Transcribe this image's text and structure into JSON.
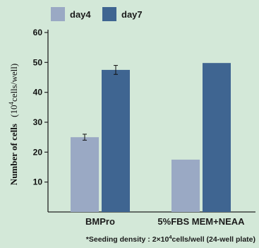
{
  "chart_data": {
    "type": "bar",
    "categories": [
      "BMPro",
      "5%FBS MEM+NEAA"
    ],
    "series": [
      {
        "name": "day4",
        "values": [
          25,
          17.5
        ],
        "errors": [
          1,
          0
        ],
        "color": "#9aa9c4"
      },
      {
        "name": "day7",
        "values": [
          47.5,
          49.8
        ],
        "errors": [
          1.5,
          0
        ],
        "color": "#3f6591"
      }
    ],
    "ylabel_bold": "Number of cells",
    "ylabel_unit_open": "(10",
    "ylabel_unit_sup": "4",
    "ylabel_unit_close": "cells/well)",
    "ylim": [
      0,
      60
    ],
    "yticks": [
      10,
      20,
      30,
      40,
      50,
      60
    ],
    "legend_position": "top-left",
    "grid": false
  },
  "footnote": {
    "prefix": "*Seeding density : 2×10",
    "sup": "4",
    "suffix": "cells/well (24-well plate)"
  }
}
